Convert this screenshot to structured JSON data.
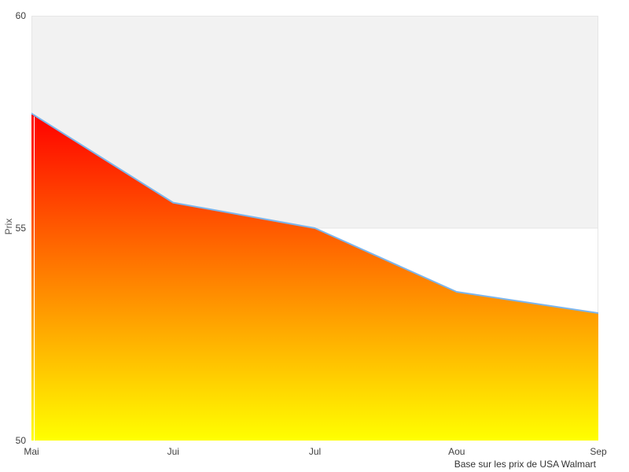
{
  "chart_data": {
    "type": "area",
    "categories": [
      "Mai",
      "Jui",
      "Jul",
      "Aou",
      "Sep"
    ],
    "values": [
      57.7,
      55.6,
      55.0,
      53.5,
      53.0
    ],
    "title": "",
    "xlabel": "",
    "ylabel": "Prix",
    "ylim": [
      50,
      60
    ],
    "yticks": [
      50,
      55,
      60
    ],
    "grid": "horizontal",
    "legend": "none",
    "caption": "Base sur les prix de USA Walmart",
    "colors": {
      "line": "#7cb5ec",
      "area_gradient_top": "#ff0000",
      "area_gradient_mid": "#ff8000",
      "area_gradient_bottom": "#ffff00",
      "band_color": "#f2f2f2",
      "band_range": [
        55,
        60
      ],
      "gridline": "#e6e6e6",
      "plot_background": "#ffffff",
      "tick_label": "#404040",
      "axis_title": "#555555",
      "caption_color": "#333333"
    }
  }
}
